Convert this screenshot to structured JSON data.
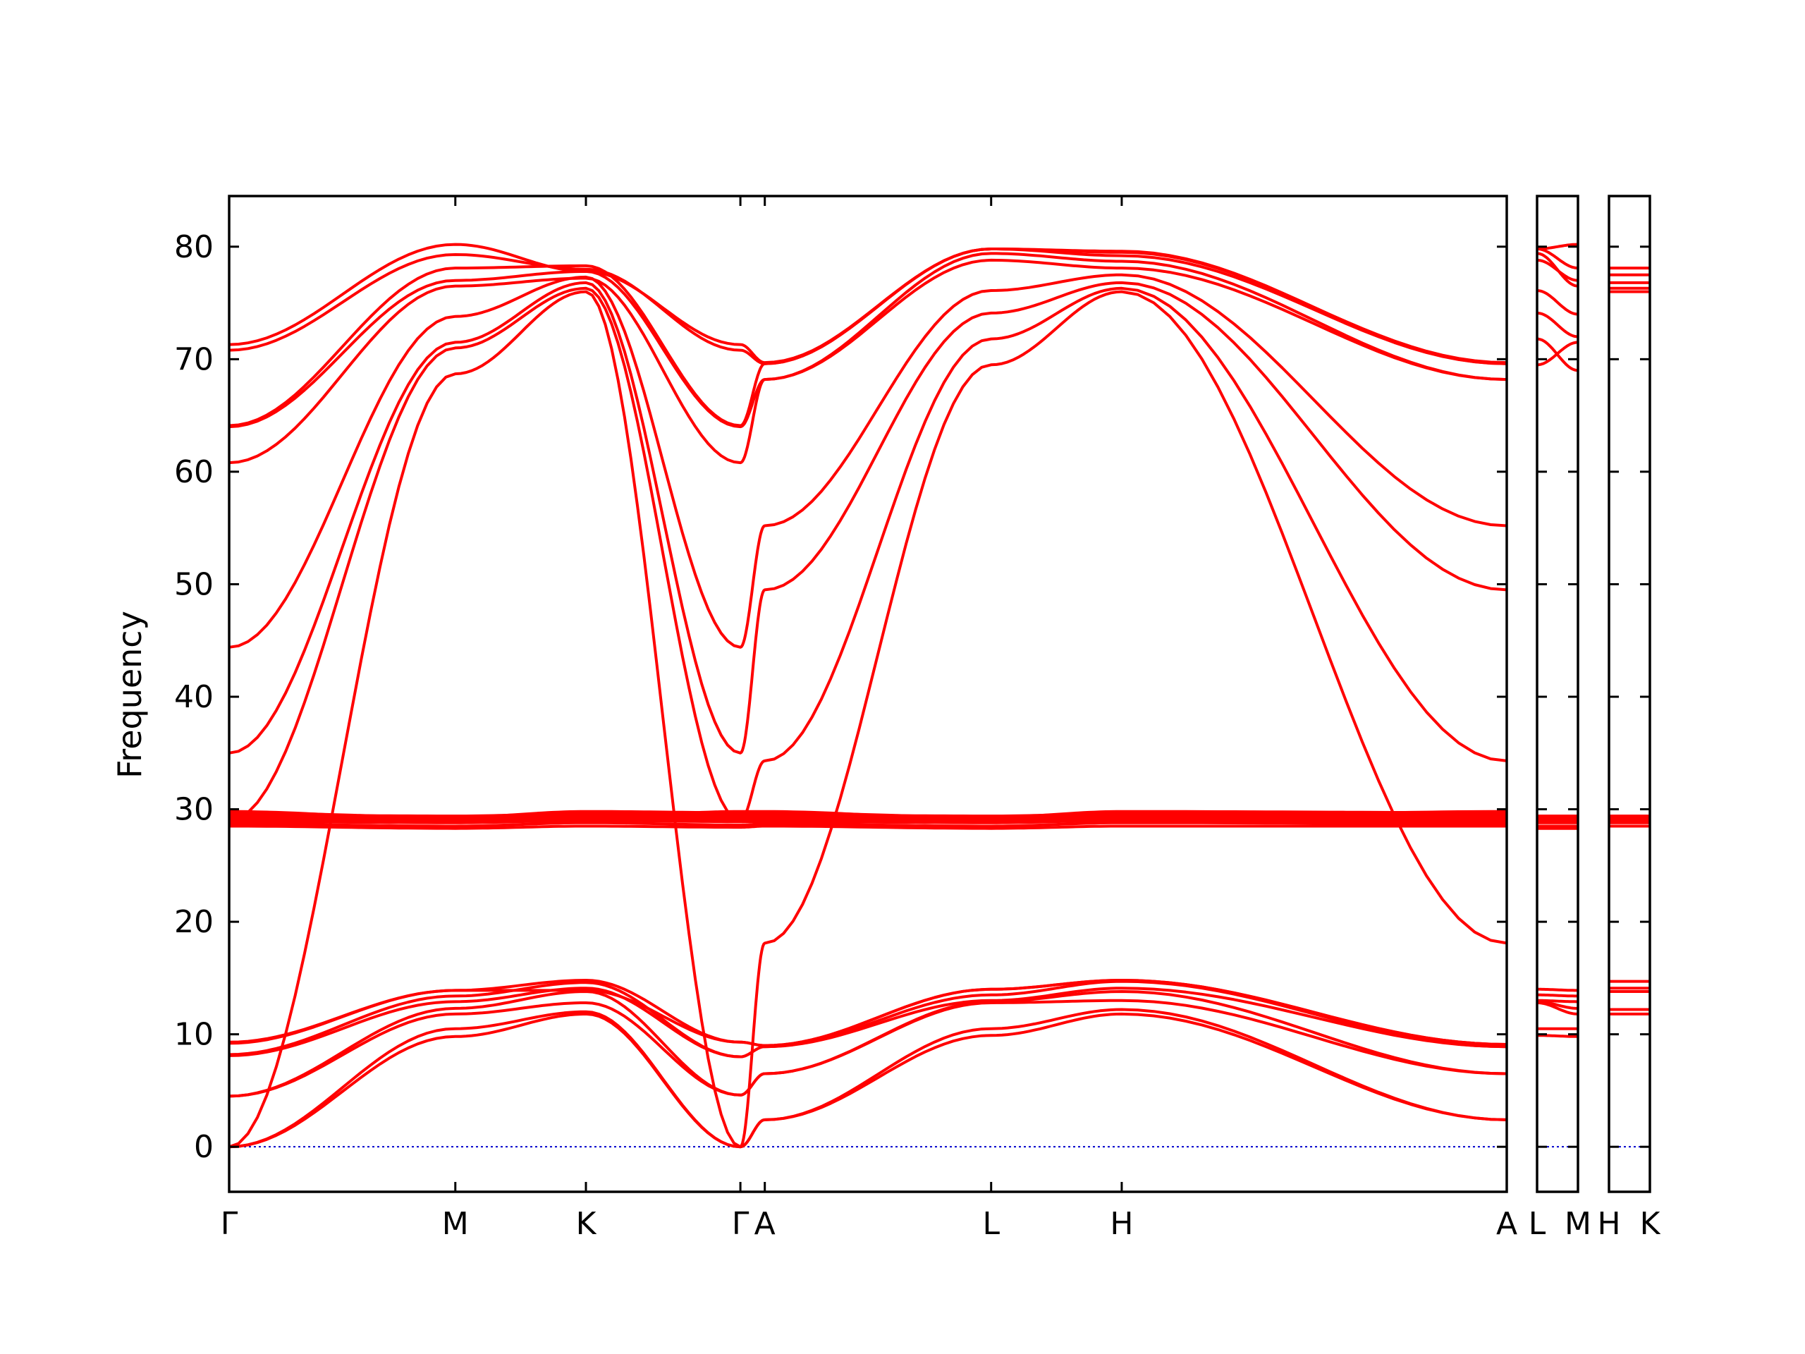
{
  "chart_data": {
    "type": "line",
    "xlabel": "",
    "ylabel": "Frequency",
    "ylim": [
      -4,
      84.5
    ],
    "yticks": [
      "0",
      "10",
      "20",
      "30",
      "40",
      "50",
      "60",
      "70",
      "80"
    ],
    "grid": false,
    "colors": {
      "bands": "#ff0000",
      "zero_line": "#0000cc"
    },
    "panels": [
      {
        "path": [
          "Γ",
          "M",
          "K",
          "Γ",
          "A",
          "L",
          "H",
          "A"
        ],
        "labels": [
          "Γ",
          "M",
          "K",
          "Γ",
          "A",
          "L",
          "H",
          "A"
        ],
        "series": [
          {
            "values": [
              0,
              9.8,
              11.8,
              0,
              2.4,
              9.9,
              11.8,
              2.4
            ]
          },
          {
            "values": [
              0,
              10.5,
              12.0,
              0,
              2.4,
              10.5,
              12.2,
              2.4
            ]
          },
          {
            "values": [
              4.5,
              11.8,
              12.8,
              4.6,
              6.5,
              12.8,
              13.0,
              6.5
            ]
          },
          {
            "values": [
              4.5,
              12.3,
              13.8,
              4.6,
              6.5,
              12.9,
              13.8,
              6.5
            ]
          },
          {
            "values": [
              8.1,
              12.9,
              14.1,
              8.0,
              8.9,
              13.0,
              14.1,
              8.9
            ]
          },
          {
            "values": [
              8.2,
              13.4,
              14.6,
              8.0,
              8.9,
              13.5,
              14.7,
              8.9
            ]
          },
          {
            "values": [
              9.2,
              13.9,
              13.9,
              9.3,
              9.0,
              14.0,
              14.8,
              9.1
            ]
          },
          {
            "values": [
              9.3,
              13.9,
              14.8,
              9.3,
              9.0,
              14.0,
              14.8,
              9.1
            ]
          },
          {
            "values": [
              28.5,
              28.3,
              28.5,
              28.4,
              28.5,
              28.3,
              28.5,
              28.5
            ]
          },
          {
            "values": [
              28.7,
              28.5,
              28.8,
              28.6,
              28.7,
              28.5,
              28.8,
              28.7
            ]
          },
          {
            "values": [
              28.9,
              28.8,
              29.0,
              28.9,
              28.9,
              28.8,
              29.0,
              28.9
            ]
          },
          {
            "values": [
              29.1,
              29.0,
              29.2,
              29.1,
              29.1,
              29.0,
              29.2,
              29.1
            ]
          },
          {
            "values": [
              29.3,
              29.2,
              29.4,
              29.3,
              29.3,
              29.2,
              29.4,
              29.3
            ]
          },
          {
            "values": [
              29.5,
              29.4,
              29.6,
              29.5,
              29.5,
              29.4,
              29.6,
              29.5
            ]
          },
          {
            "values": [
              29.7,
              29.3,
              29.8,
              29.7,
              29.7,
              29.3,
              29.8,
              29.7
            ]
          },
          {
            "values": [
              29.8,
              29.1,
              29.3,
              29.8,
              29.8,
              29.1,
              29.3,
              29.8
            ]
          },
          {
            "values": [
              0,
              68.7,
              76.0,
              0,
              18.1,
              69.5,
              76.0,
              18.1
            ]
          },
          {
            "values": [
              29.0,
              71.0,
              76.3,
              29.0,
              34.3,
              71.8,
              76.3,
              34.3
            ]
          },
          {
            "values": [
              35.0,
              71.5,
              76.8,
              35.0,
              49.5,
              74.1,
              76.8,
              49.5
            ]
          },
          {
            "values": [
              44.4,
              73.8,
              77.3,
              44.4,
              55.2,
              76.1,
              77.5,
              55.2
            ]
          },
          {
            "values": [
              60.8,
              76.5,
              77.2,
              60.8,
              68.2,
              78.8,
              78.1,
              68.2
            ]
          },
          {
            "values": [
              64.0,
              77.0,
              77.8,
              64.0,
              68.2,
              79.4,
              78.7,
              68.2
            ]
          },
          {
            "values": [
              64.1,
              78.1,
              78.3,
              64.1,
              69.6,
              79.8,
              79.2,
              69.6
            ]
          },
          {
            "values": [
              70.8,
              79.3,
              78.0,
              70.8,
              69.6,
              79.8,
              79.6,
              69.6
            ]
          },
          {
            "values": [
              71.3,
              80.2,
              77.8,
              71.3,
              69.7,
              79.8,
              79.5,
              69.7
            ]
          }
        ]
      },
      {
        "path": [
          "L",
          "M"
        ],
        "labels": [
          "L",
          "M"
        ],
        "series": [
          {
            "values": [
              69.5,
              71.5
            ]
          },
          {
            "values": [
              71.8,
              69.0
            ]
          },
          {
            "values": [
              74.1,
              72.0
            ]
          },
          {
            "values": [
              76.1,
              74.0
            ]
          },
          {
            "values": [
              78.8,
              77.0
            ]
          },
          {
            "values": [
              79.4,
              76.5
            ]
          },
          {
            "values": [
              79.8,
              80.2
            ]
          },
          {
            "values": [
              79.8,
              78.1
            ]
          },
          {
            "values": [
              28.3,
              28.3
            ]
          },
          {
            "values": [
              28.5,
              28.5
            ]
          },
          {
            "values": [
              28.8,
              28.8
            ]
          },
          {
            "values": [
              29.0,
              29.0
            ]
          },
          {
            "values": [
              29.2,
              29.2
            ]
          },
          {
            "values": [
              29.4,
              29.4
            ]
          },
          {
            "values": [
              9.9,
              9.8
            ]
          },
          {
            "values": [
              10.5,
              10.5
            ]
          },
          {
            "values": [
              12.8,
              11.8
            ]
          },
          {
            "values": [
              12.9,
              12.3
            ]
          },
          {
            "values": [
              13.0,
              12.9
            ]
          },
          {
            "values": [
              13.5,
              13.4
            ]
          },
          {
            "values": [
              14.0,
              13.9
            ]
          }
        ]
      },
      {
        "path": [
          "H",
          "K"
        ],
        "labels": [
          "H",
          "K"
        ],
        "series": [
          {
            "values": [
              76.0,
              76.0
            ]
          },
          {
            "values": [
              76.3,
              76.3
            ]
          },
          {
            "values": [
              76.8,
              76.8
            ]
          },
          {
            "values": [
              77.5,
              77.5
            ]
          },
          {
            "values": [
              78.1,
              78.1
            ]
          },
          {
            "values": [
              28.5,
              28.5
            ]
          },
          {
            "values": [
              28.8,
              28.8
            ]
          },
          {
            "values": [
              29.0,
              29.0
            ]
          },
          {
            "values": [
              29.2,
              29.2
            ]
          },
          {
            "values": [
              29.4,
              29.4
            ]
          },
          {
            "values": [
              11.8,
              11.8
            ]
          },
          {
            "values": [
              12.2,
              12.2
            ]
          },
          {
            "values": [
              13.8,
              13.8
            ]
          },
          {
            "values": [
              14.1,
              14.1
            ]
          },
          {
            "values": [
              14.7,
              14.7
            ]
          }
        ]
      }
    ]
  }
}
